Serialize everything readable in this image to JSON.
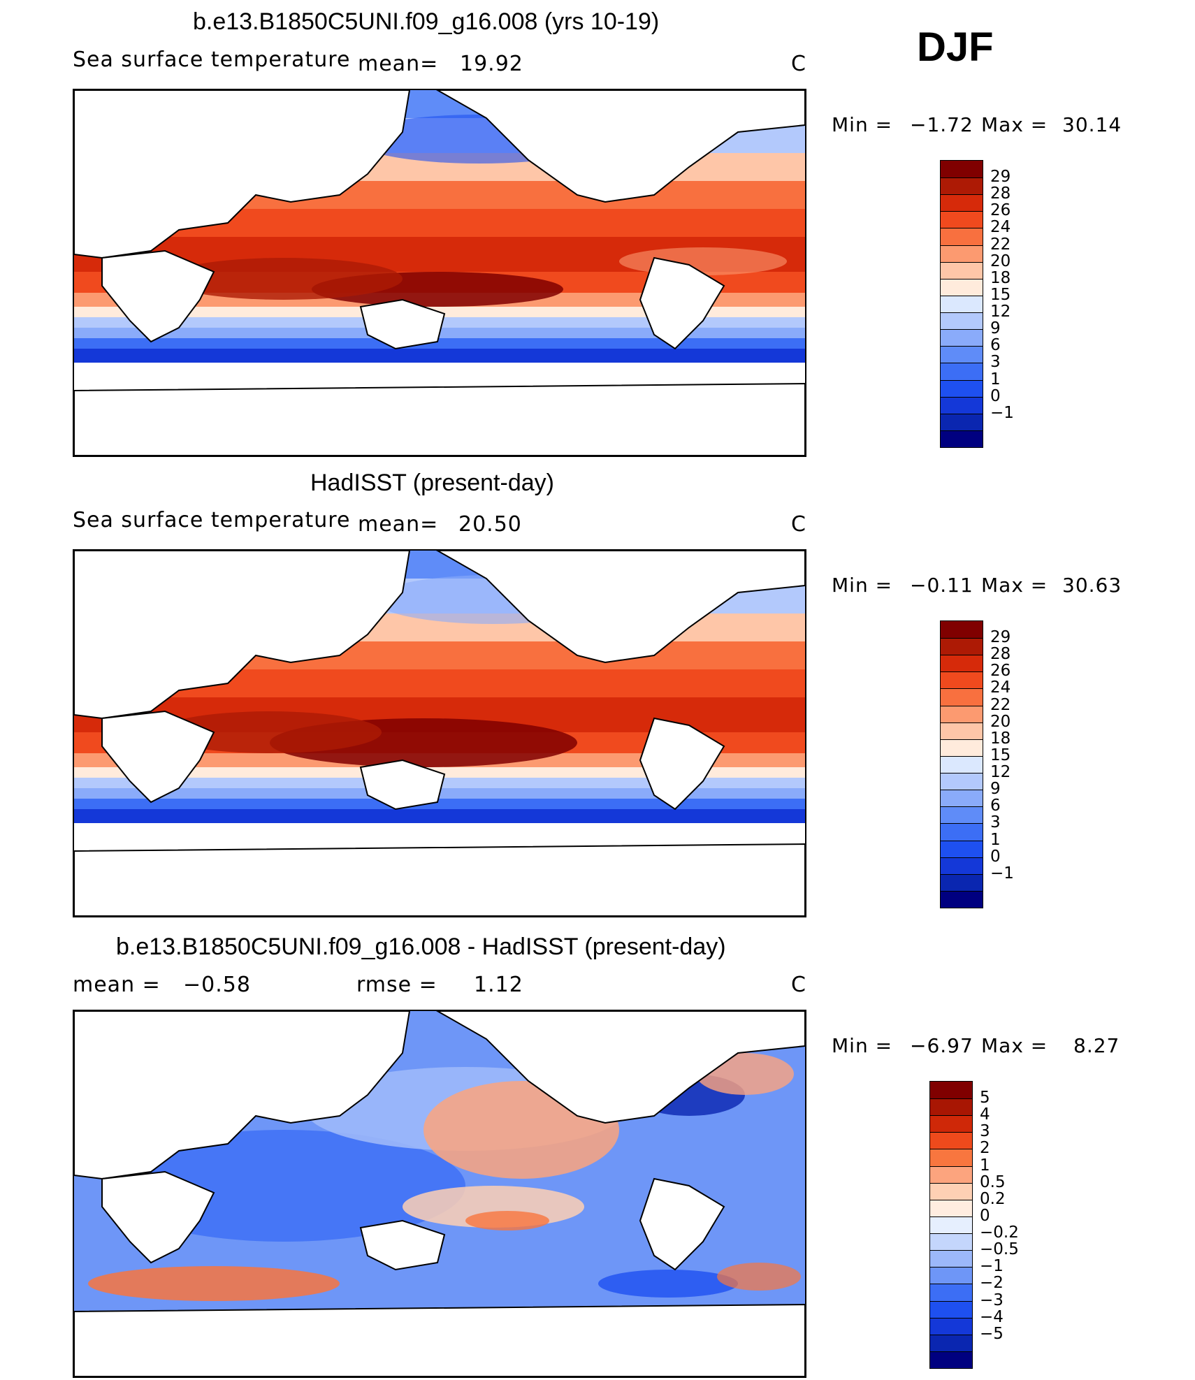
{
  "season": "DJF",
  "panels": [
    {
      "title": "b.e13.B1850C5UNI.f09_g16.008 (yrs 10-19)",
      "left_label": "Sea surface temperature",
      "mean_label": "mean=",
      "mean_value": "19.92",
      "units": "C",
      "min_label": "Min =",
      "min_value": "−1.72",
      "max_label": "Max =",
      "max_value": "30.14",
      "ticks": [
        "29",
        "28",
        "26",
        "24",
        "22",
        "20",
        "18",
        "15",
        "12",
        "9",
        "6",
        "3",
        "1",
        "0",
        "−1"
      ]
    },
    {
      "title": "HadISST (present-day)",
      "left_label": "Sea surface temperature",
      "mean_label": "mean=",
      "mean_value": "20.50",
      "units": "C",
      "min_label": "Min =",
      "min_value": "−0.11",
      "max_label": "Max =",
      "max_value": "30.63",
      "ticks": [
        "29",
        "28",
        "26",
        "24",
        "22",
        "20",
        "18",
        "15",
        "12",
        "9",
        "6",
        "3",
        "1",
        "0",
        "−1"
      ]
    },
    {
      "title": "b.e13.B1850C5UNI.f09_g16.008 - HadISST (present-day)",
      "mean_label": "mean =",
      "mean_value": "−0.58",
      "rmse_label": "rmse =",
      "rmse_value": "1.12",
      "units": "C",
      "min_label": "Min =",
      "min_value": "−6.97",
      "max_label": "Max =",
      "max_value": "8.27",
      "ticks": [
        "5",
        "4",
        "3",
        "2",
        "1",
        "0.5",
        "0.2",
        "0",
        "−0.2",
        "−0.5",
        "−1",
        "−2",
        "−3",
        "−4",
        "−5"
      ]
    }
  ],
  "colors": {
    "sst": [
      "#000080",
      "#0a26b0",
      "#1438d8",
      "#1e50f0",
      "#3c6ef5",
      "#5f8cf8",
      "#8aabfa",
      "#b3c9fc",
      "#dbe8fe",
      "#ffebdc",
      "#fec6a8",
      "#fc9a70",
      "#f8703f",
      "#f04a1e",
      "#d62a0a",
      "#ad1a05",
      "#800000"
    ],
    "diff": [
      "#000080",
      "#0a26b0",
      "#1438d8",
      "#1e50f0",
      "#3c6ef5",
      "#6e96f7",
      "#9cb8fa",
      "#c4d6fc",
      "#e6effe",
      "#ffede0",
      "#fed0b4",
      "#fca47e",
      "#f8763f",
      "#ee4a1c",
      "#cf2808",
      "#a81603",
      "#800000"
    ]
  }
}
